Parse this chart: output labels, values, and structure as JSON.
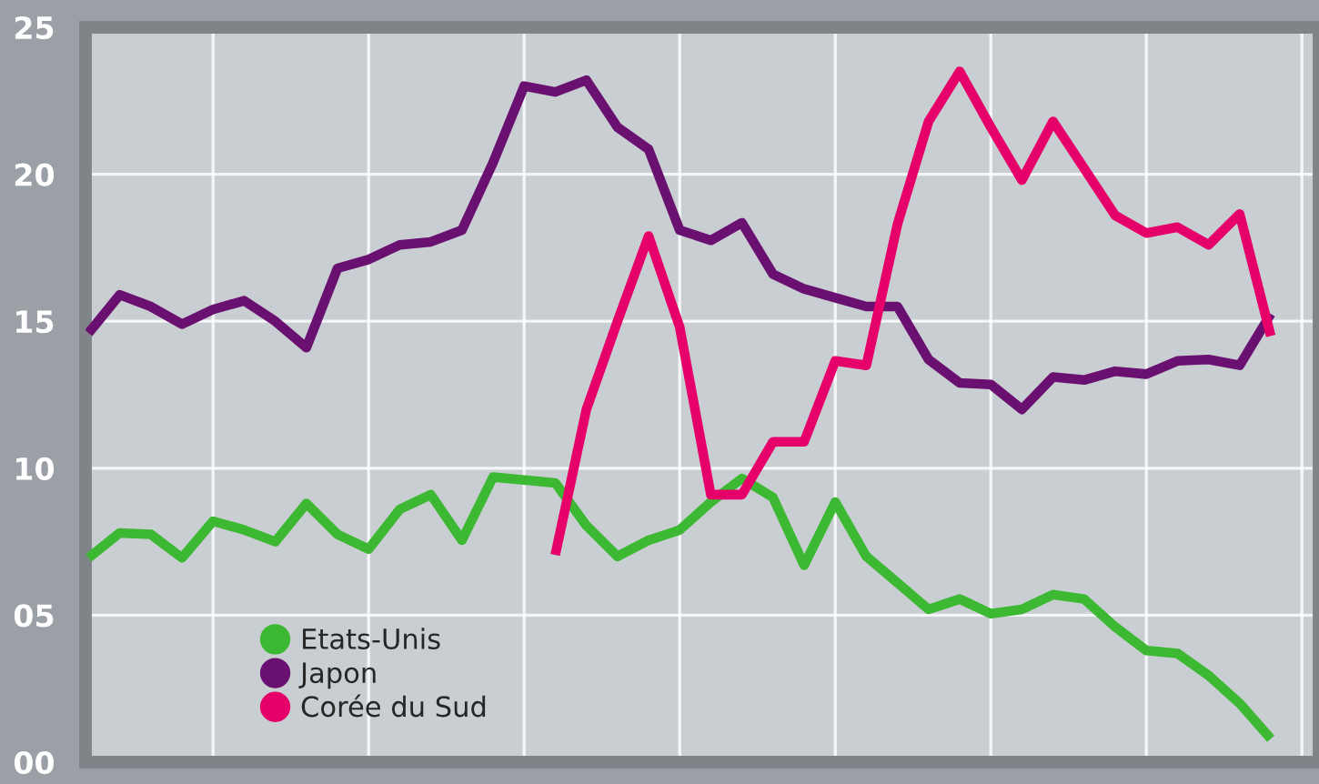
{
  "chart_data": {
    "type": "line",
    "categories": [
      null,
      null,
      null,
      null,
      null,
      null,
      null,
      null,
      null,
      null,
      null,
      null,
      null,
      null,
      null,
      null,
      null,
      null,
      null,
      null,
      null,
      null,
      null,
      null,
      null,
      null,
      null,
      null,
      null,
      null,
      null,
      null,
      null,
      null,
      null,
      null,
      null,
      null,
      null
    ],
    "series": [
      {
        "name": "Etats-Unis",
        "color": "#3cb832",
        "values": [
          6.95,
          7.8,
          7.75,
          6.95,
          8.2,
          7.9,
          7.5,
          8.8,
          7.75,
          7.25,
          8.6,
          9.1,
          7.55,
          9.7,
          9.6,
          9.5,
          8.05,
          7.0,
          7.55,
          7.9,
          8.85,
          9.65,
          9.0,
          6.7,
          8.85,
          7.0,
          6.1,
          5.2,
          5.55,
          5.05,
          5.2,
          5.7,
          5.55,
          4.6,
          3.8,
          3.7,
          2.95,
          2.0,
          0.8
        ]
      },
      {
        "name": "Japon",
        "color": "#6a1070",
        "values": [
          14.6,
          15.9,
          15.5,
          14.9,
          15.4,
          15.7,
          15.0,
          14.1,
          16.8,
          17.1,
          17.6,
          17.7,
          18.1,
          20.4,
          23.0,
          22.8,
          23.2,
          21.6,
          20.85,
          18.1,
          17.75,
          18.35,
          16.6,
          16.1,
          15.8,
          15.5,
          15.5,
          13.7,
          12.9,
          12.85,
          12.0,
          13.1,
          13.0,
          13.3,
          13.2,
          13.65,
          13.7,
          13.5,
          15.25
        ]
      },
      {
        "name": "Corée du Sud",
        "color": "#e5006a",
        "values": [
          null,
          null,
          null,
          null,
          null,
          null,
          null,
          null,
          null,
          null,
          null,
          null,
          null,
          null,
          null,
          7.05,
          12.0,
          15.0,
          17.9,
          14.8,
          9.1,
          9.1,
          10.9,
          10.9,
          13.65,
          13.5,
          18.3,
          21.8,
          23.5,
          21.6,
          19.8,
          21.8,
          20.2,
          18.6,
          18.0,
          18.2,
          17.6,
          18.65,
          14.5
        ]
      }
    ],
    "ylim": [
      0,
      25
    ],
    "yticks": [
      {
        "value": 0,
        "label": "00"
      },
      {
        "value": 5,
        "label": "05"
      },
      10,
      15,
      20,
      25
    ],
    "grid": true,
    "legend": "bottom left",
    "line_style": "solid"
  }
}
